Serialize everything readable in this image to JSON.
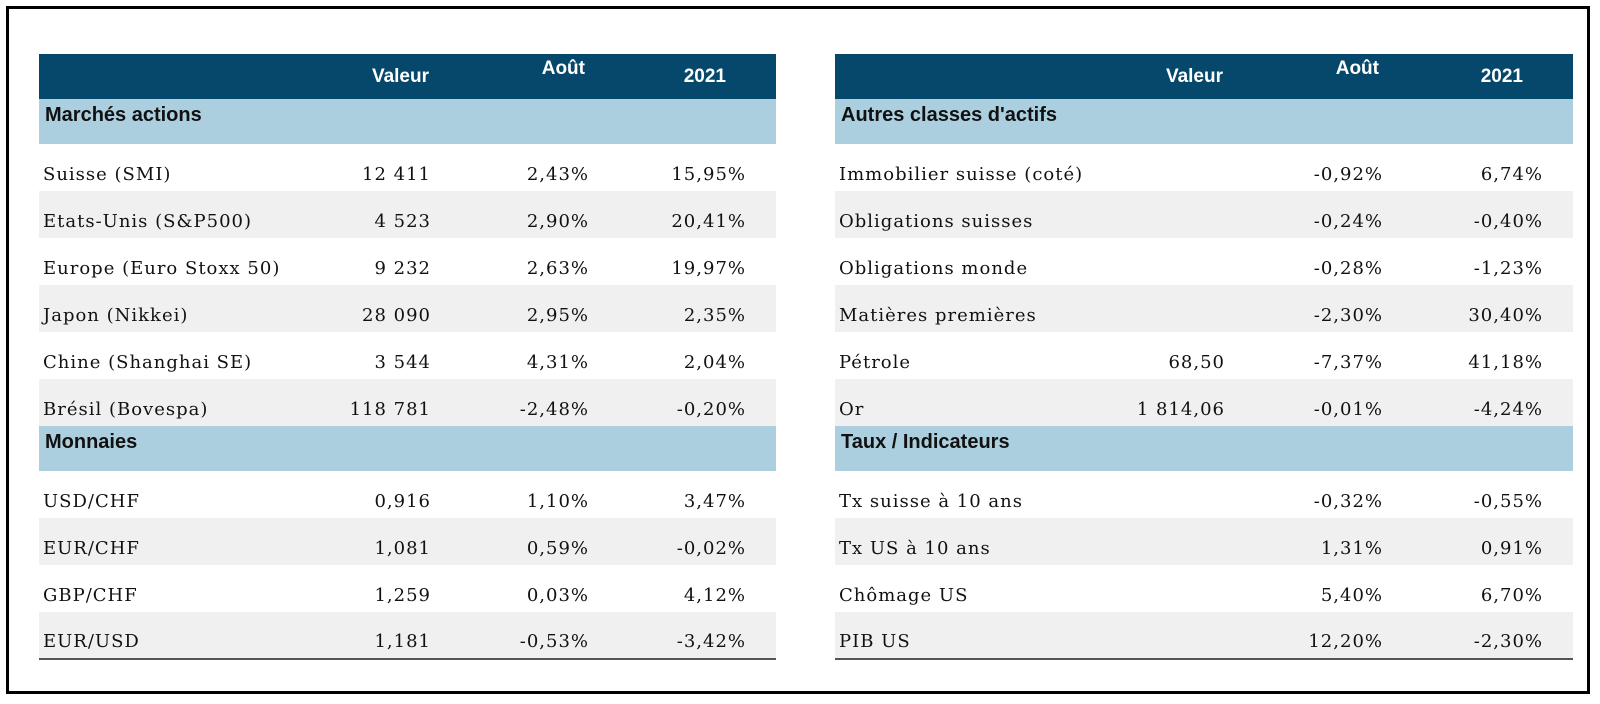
{
  "headers": {
    "col1": "",
    "valeur": "Valeur",
    "aout": "Août",
    "y2021": "2021"
  },
  "left": {
    "sections": [
      {
        "title": "Marchés actions",
        "rows": [
          {
            "name": "Suisse (SMI)",
            "valeur": "12 411",
            "aout": "2,43%",
            "y2021": "15,95%"
          },
          {
            "name": "Etats-Unis (S&P500)",
            "valeur": "4 523",
            "aout": "2,90%",
            "y2021": "20,41%"
          },
          {
            "name": "Europe (Euro Stoxx 50)",
            "valeur": "9 232",
            "aout": "2,63%",
            "y2021": "19,97%"
          },
          {
            "name": "Japon (Nikkei)",
            "valeur": "28 090",
            "aout": "2,95%",
            "y2021": "2,35%"
          },
          {
            "name": "Chine (Shanghai SE)",
            "valeur": "3 544",
            "aout": "4,31%",
            "y2021": "2,04%"
          },
          {
            "name": "Brésil (Bovespa)",
            "valeur": "118 781",
            "aout": "-2,48%",
            "y2021": "-0,20%"
          }
        ]
      },
      {
        "title": "Monnaies",
        "rows": [
          {
            "name": "USD/CHF",
            "valeur": "0,916",
            "aout": "1,10%",
            "y2021": "3,47%"
          },
          {
            "name": "EUR/CHF",
            "valeur": "1,081",
            "aout": "0,59%",
            "y2021": "-0,02%"
          },
          {
            "name": "GBP/CHF",
            "valeur": "1,259",
            "aout": "0,03%",
            "y2021": "4,12%"
          },
          {
            "name": "EUR/USD",
            "valeur": "1,181",
            "aout": "-0,53%",
            "y2021": "-3,42%"
          }
        ]
      }
    ]
  },
  "right": {
    "sections": [
      {
        "title": "Autres classes d'actifs",
        "rows": [
          {
            "name": "Immobilier suisse (coté)",
            "valeur": "",
            "aout": "-0,92%",
            "y2021": "6,74%"
          },
          {
            "name": "Obligations suisses",
            "valeur": "",
            "aout": "-0,24%",
            "y2021": "-0,40%"
          },
          {
            "name": "Obligations monde",
            "valeur": "",
            "aout": "-0,28%",
            "y2021": "-1,23%"
          },
          {
            "name": "Matières premières",
            "valeur": "",
            "aout": "-2,30%",
            "y2021": "30,40%"
          },
          {
            "name": "Pétrole",
            "valeur": "68,50",
            "aout": "-7,37%",
            "y2021": "41,18%"
          },
          {
            "name": "Or",
            "valeur": "1 814,06",
            "aout": "-0,01%",
            "y2021": "-4,24%"
          }
        ]
      },
      {
        "title": "Taux / Indicateurs",
        "rows": [
          {
            "name": "Tx suisse à 10 ans",
            "valeur": "",
            "aout": "-0,32%",
            "y2021": "-0,55%"
          },
          {
            "name": "Tx US à 10 ans",
            "valeur": "",
            "aout": "1,31%",
            "y2021": "0,91%"
          },
          {
            "name": "Chômage US",
            "valeur": "",
            "aout": "5,40%",
            "y2021": "6,70%"
          },
          {
            "name": "PIB US",
            "valeur": "",
            "aout": "12,20%",
            "y2021": "-2,30%"
          }
        ]
      }
    ]
  }
}
